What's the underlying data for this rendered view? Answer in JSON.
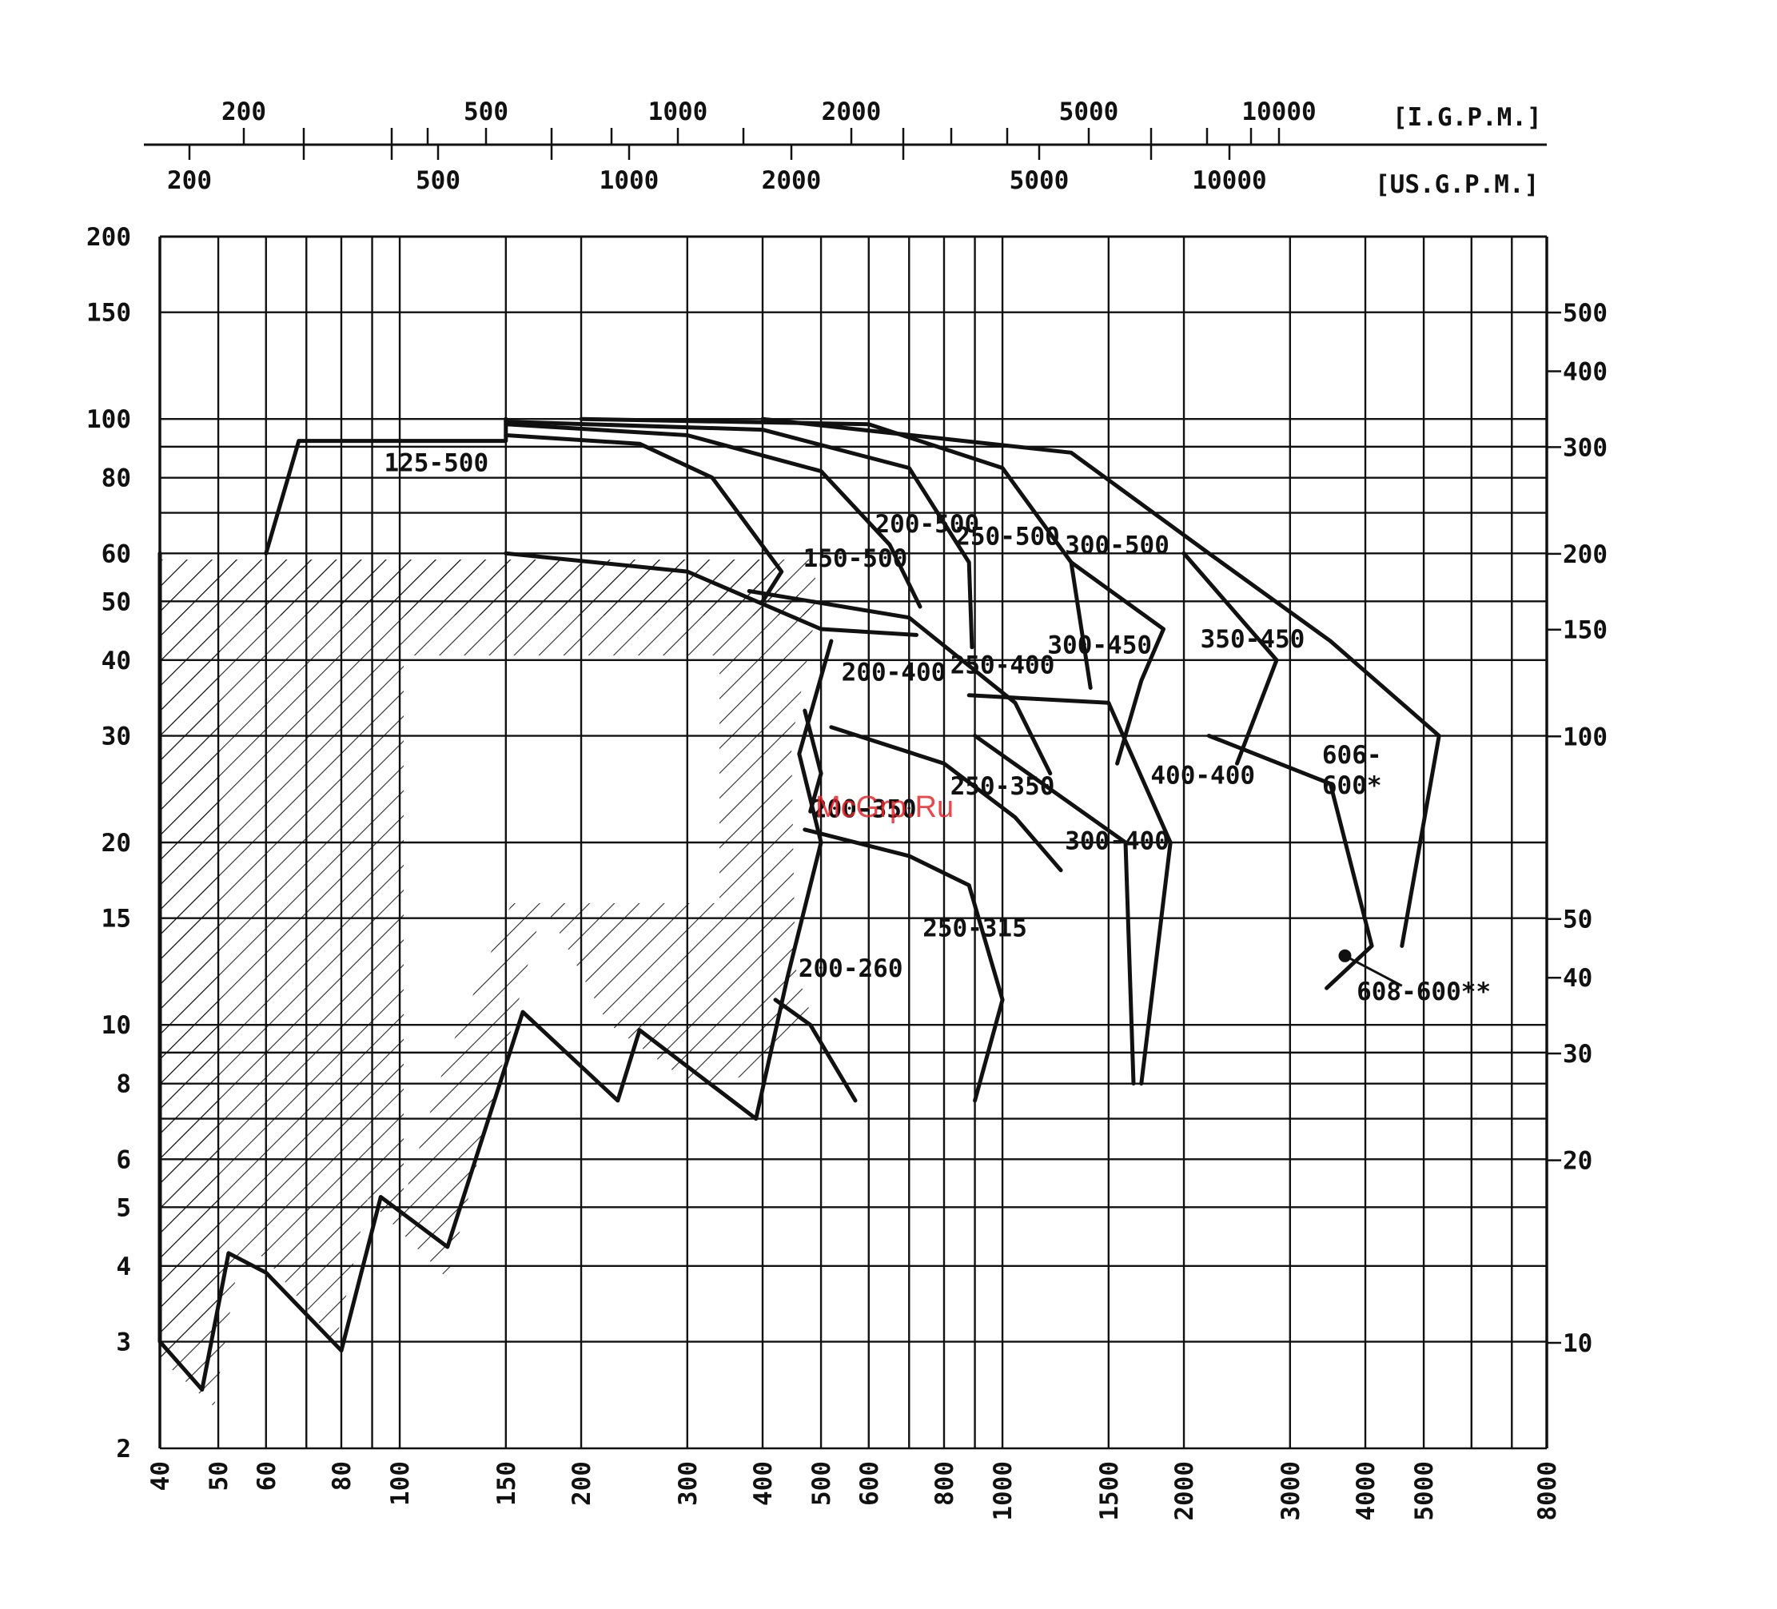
{
  "watermark": "McGrp.Ru",
  "top_axes": {
    "igpm": {
      "label": "[I.G.P.M.]",
      "ticks": [
        "200",
        "500",
        "1000",
        "2000",
        "5000",
        "10000"
      ]
    },
    "usgpm": {
      "label": "[US.G.P.M.]",
      "ticks": [
        "200",
        "500",
        "1000",
        "2000",
        "5000",
        "10000"
      ]
    }
  },
  "chart_data": {
    "type": "line",
    "description_type": "pump performance coverage chart (log-log)",
    "x_scale": "log",
    "y_scale": "log",
    "xlim": [
      40,
      8000
    ],
    "ylim": [
      2,
      200
    ],
    "grid": true,
    "x_ticks": [
      "40",
      "50",
      "60",
      "80",
      "100",
      "150",
      "200",
      "300",
      "400",
      "500",
      "600",
      "800",
      "1000",
      "1500",
      "2000",
      "3000",
      "4000",
      "5000",
      "8000"
    ],
    "y_ticks": [
      "2",
      "3",
      "4",
      "5",
      "6",
      "8",
      "10",
      "15",
      "20",
      "30",
      "40",
      "50",
      "60",
      "80",
      "100",
      "150",
      "200"
    ],
    "y2_ticks": [
      "10",
      "20",
      "30",
      "40",
      "50",
      "100",
      "150",
      "200",
      "300",
      "400",
      "500"
    ],
    "series": [
      {
        "name": "125-500",
        "label_at": [
          115,
          82
        ],
        "points": [
          [
            60,
            60
          ],
          [
            68,
            92
          ],
          [
            150,
            92
          ],
          [
            150,
            100
          ]
        ]
      },
      {
        "name": "150-500",
        "label_at": [
          570,
          57
        ],
        "points": [
          [
            150,
            94
          ],
          [
            250,
            91
          ],
          [
            330,
            80
          ],
          [
            430,
            56
          ],
          [
            400,
            50
          ]
        ]
      },
      {
        "name": "200-500",
        "label_at": [
          750,
          65
        ],
        "points": [
          [
            150,
            98
          ],
          [
            300,
            94
          ],
          [
            500,
            82
          ],
          [
            650,
            62
          ],
          [
            730,
            49
          ]
        ]
      },
      {
        "name": "250-500",
        "label_at": [
          1020,
          62
        ],
        "points": [
          [
            150,
            99
          ],
          [
            400,
            96
          ],
          [
            700,
            83
          ],
          [
            880,
            58
          ],
          [
            890,
            42
          ]
        ]
      },
      {
        "name": "300-500",
        "label_at": [
          1550,
          60
        ],
        "points": [
          [
            200,
            100
          ],
          [
            600,
            98
          ],
          [
            1000,
            83
          ],
          [
            1300,
            58
          ],
          [
            1400,
            36
          ]
        ]
      },
      {
        "name": "606-600*",
        "label_at": [
          3800,
          27
        ],
        "points": [
          [
            400,
            100
          ],
          [
            1300,
            88
          ],
          [
            2200,
            60
          ],
          [
            3500,
            43
          ],
          [
            5300,
            30
          ],
          [
            4600,
            13.5
          ]
        ]
      },
      {
        "name": "200-400",
        "label_at": [
          660,
          37
        ],
        "points": [
          [
            150,
            60
          ],
          [
            300,
            56
          ],
          [
            500,
            45
          ],
          [
            720,
            44
          ]
        ]
      },
      {
        "name": "250-400",
        "label_at": [
          1000,
          38
        ],
        "points": [
          [
            380,
            52
          ],
          [
            700,
            47
          ],
          [
            1050,
            34
          ],
          [
            1200,
            26
          ]
        ]
      },
      {
        "name": "300-450",
        "label_at": [
          1450,
          41
        ],
        "points": [
          [
            1300,
            58
          ],
          [
            1850,
            45
          ],
          [
            1700,
            37
          ],
          [
            1550,
            27
          ]
        ]
      },
      {
        "name": "350-450",
        "label_at": [
          2600,
          42
        ],
        "points": [
          [
            2000,
            60
          ],
          [
            2850,
            40
          ],
          [
            2450,
            27
          ]
        ]
      },
      {
        "name": "250-350",
        "label_at": [
          1000,
          24
        ],
        "points": [
          [
            520,
            31
          ],
          [
            800,
            27
          ],
          [
            1050,
            22
          ],
          [
            1250,
            18
          ]
        ]
      },
      {
        "name": "200-350",
        "label_at": [
          590,
          22
        ],
        "points": [
          [
            470,
            33
          ],
          [
            500,
            26
          ],
          [
            480,
            22.5
          ]
        ]
      },
      {
        "name": "400-400",
        "label_at": [
          2150,
          25
        ],
        "points": [
          [
            880,
            35
          ],
          [
            1500,
            34
          ],
          [
            1900,
            20
          ],
          [
            1700,
            8
          ]
        ]
      },
      {
        "name": "300-400",
        "label_at": [
          1550,
          19.5
        ],
        "points": [
          [
            900,
            30
          ],
          [
            1600,
            20
          ],
          [
            1650,
            8
          ]
        ]
      },
      {
        "name": "250-315",
        "label_at": [
          900,
          14
        ],
        "points": [
          [
            470,
            21
          ],
          [
            700,
            19
          ],
          [
            880,
            17
          ],
          [
            1000,
            11
          ],
          [
            900,
            7.5
          ]
        ]
      },
      {
        "name": "200-260",
        "label_at": [
          560,
          12
        ],
        "points": [
          [
            420,
            11
          ],
          [
            480,
            10
          ],
          [
            570,
            7.5
          ]
        ]
      },
      {
        "name": "608-600**",
        "label_at": [
          5000,
          11
        ],
        "points": [
          [
            2200,
            30
          ],
          [
            3500,
            25
          ],
          [
            4100,
            13.5
          ],
          [
            3450,
            11.5
          ]
        ]
      },
      {
        "name": "hatched-limit-left",
        "label_at": null,
        "points": [
          [
            40,
            60
          ],
          [
            40,
            3
          ],
          [
            47,
            2.5
          ],
          [
            52,
            4.2
          ],
          [
            60,
            3.9
          ],
          [
            80,
            2.9
          ],
          [
            93,
            5.2
          ],
          [
            120,
            4.3
          ],
          [
            160,
            10.5
          ],
          [
            230,
            7.5
          ],
          [
            250,
            9.8
          ],
          [
            390,
            7
          ],
          [
            440,
            12
          ],
          [
            500,
            20
          ],
          [
            460,
            28
          ],
          [
            520,
            43
          ]
        ]
      }
    ]
  }
}
